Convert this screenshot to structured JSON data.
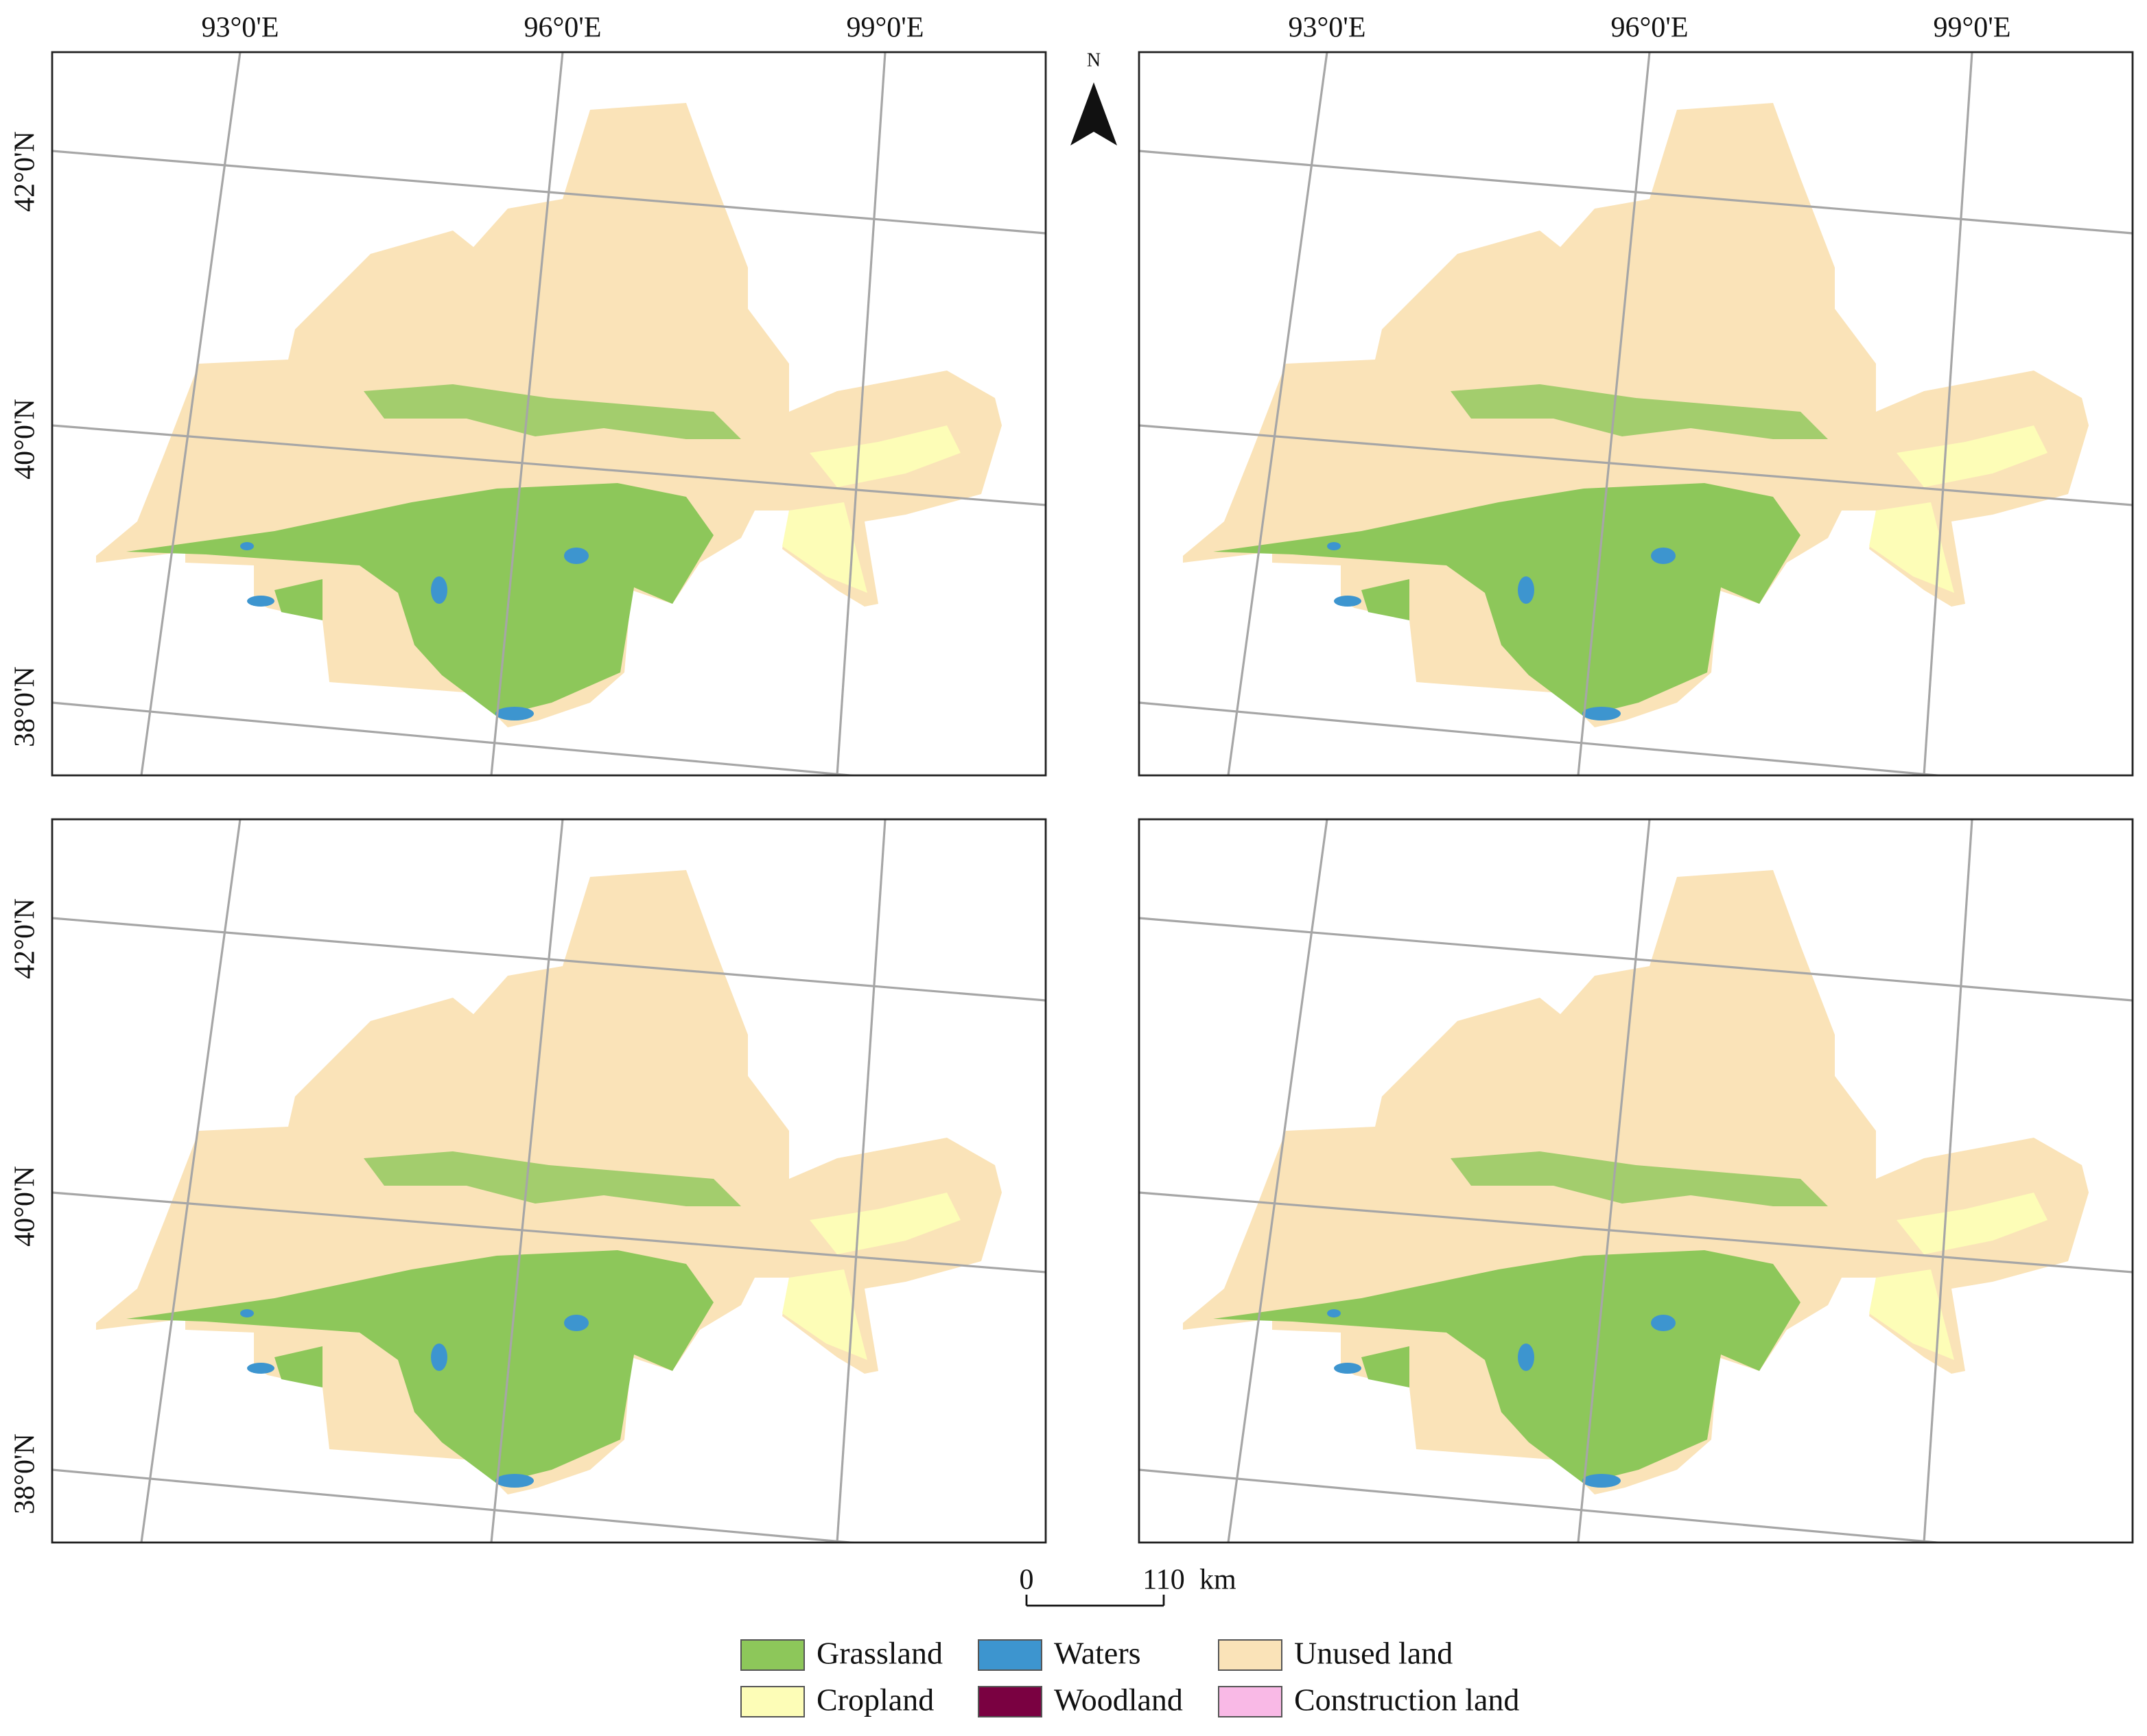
{
  "map": {
    "longitude_labels": [
      "93°0'E",
      "96°0'E",
      "99°0'E"
    ],
    "latitude_labels": [
      "42°0'N",
      "40°0'N",
      "38°0'N"
    ],
    "north_label": "N",
    "scale_bar": {
      "ticks": [
        0,
        110
      ],
      "unit": "km"
    },
    "legend": [
      {
        "name": "Grassland",
        "color": "#8dc75a"
      },
      {
        "name": "Waters",
        "color": "#3d95cf"
      },
      {
        "name": "Unused land",
        "color": "#fae3b8"
      },
      {
        "name": "Cropland",
        "color": "#fdfdb7"
      },
      {
        "name": "Woodland",
        "color": "#7a0141"
      },
      {
        "name": "Construction land",
        "color": "#f9b9e6"
      }
    ]
  }
}
